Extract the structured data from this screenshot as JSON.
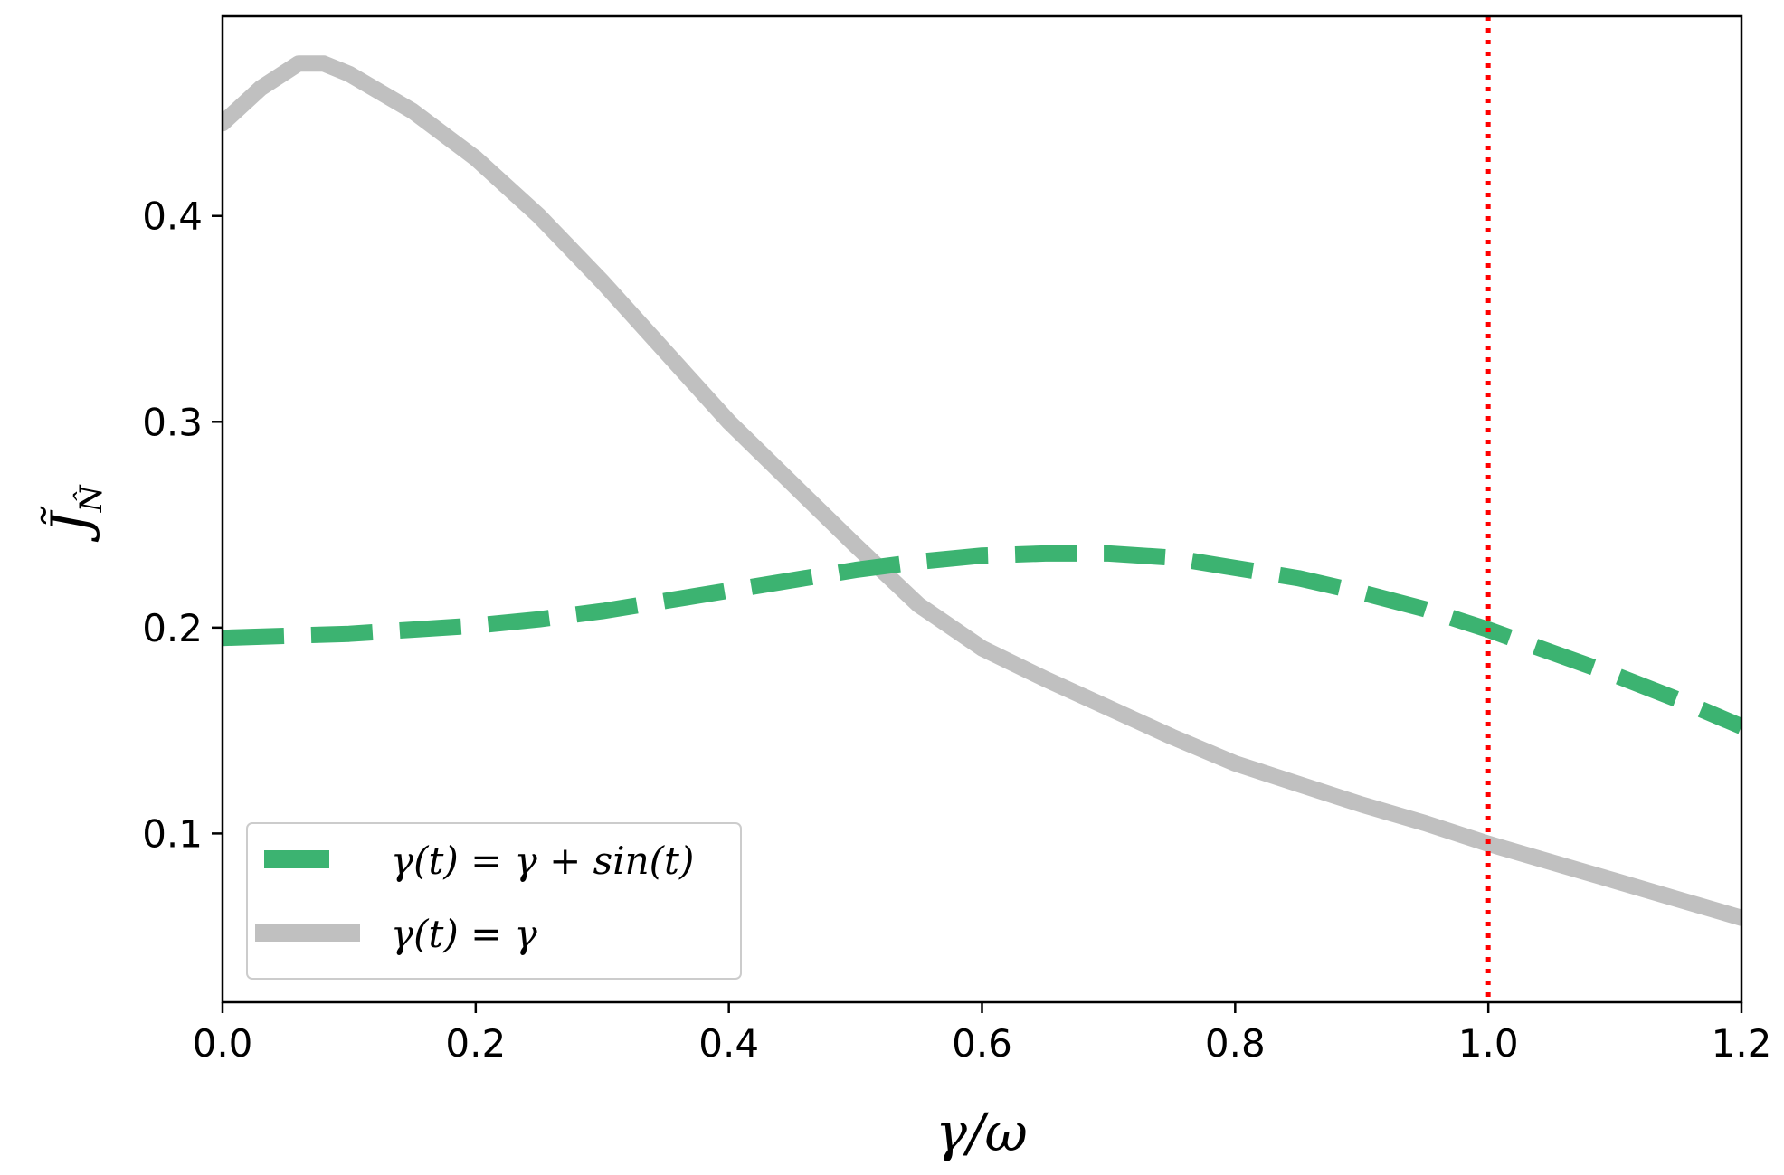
{
  "chart_data": {
    "type": "line",
    "title": "",
    "xlabel": "γ/ω",
    "ylabel": "J̃",
    "ylabel_subscript": "N̂",
    "xlim": [
      0.0,
      1.2
    ],
    "ylim": [
      0.018,
      0.497
    ],
    "xticks": [
      0.0,
      0.2,
      0.4,
      0.6,
      0.8,
      1.0,
      1.2
    ],
    "xtick_labels": [
      "0.0",
      "0.2",
      "0.4",
      "0.6",
      "0.8",
      "1.0",
      "1.2"
    ],
    "yticks": [
      0.1,
      0.2,
      0.3,
      0.4
    ],
    "ytick_labels": [
      "0.1",
      "0.2",
      "0.3",
      "0.4"
    ],
    "grid": false,
    "legend_position": "lower-left",
    "reference_line": {
      "axis": "x",
      "value": 1.0,
      "color": "#ff0000",
      "style": "dotted"
    },
    "series": [
      {
        "name": "γ(t) = γ + sin(t)",
        "color": "#3cb371",
        "style": "dashed",
        "x": [
          0.0,
          0.05,
          0.1,
          0.15,
          0.2,
          0.25,
          0.3,
          0.35,
          0.4,
          0.45,
          0.5,
          0.55,
          0.6,
          0.65,
          0.7,
          0.75,
          0.8,
          0.85,
          0.9,
          0.95,
          1.0,
          1.05,
          1.1,
          1.15,
          1.2
        ],
        "values": [
          0.195,
          0.196,
          0.197,
          0.199,
          0.201,
          0.204,
          0.208,
          0.213,
          0.218,
          0.223,
          0.228,
          0.232,
          0.235,
          0.236,
          0.236,
          0.234,
          0.229,
          0.224,
          0.217,
          0.209,
          0.199,
          0.188,
          0.177,
          0.165,
          0.152
        ]
      },
      {
        "name": "γ(t) = γ",
        "color": "#c0c0c0",
        "style": "solid",
        "x": [
          0.0,
          0.03,
          0.06,
          0.08,
          0.1,
          0.15,
          0.2,
          0.25,
          0.3,
          0.35,
          0.4,
          0.45,
          0.5,
          0.55,
          0.6,
          0.65,
          0.7,
          0.75,
          0.8,
          0.85,
          0.9,
          0.95,
          1.0,
          1.05,
          1.1,
          1.15,
          1.2
        ],
        "values": [
          0.445,
          0.462,
          0.474,
          0.474,
          0.469,
          0.451,
          0.428,
          0.4,
          0.368,
          0.334,
          0.3,
          0.27,
          0.24,
          0.211,
          0.19,
          0.175,
          0.161,
          0.147,
          0.134,
          0.124,
          0.114,
          0.105,
          0.095,
          0.086,
          0.077,
          0.068,
          0.059
        ]
      }
    ]
  },
  "colors": {
    "dashed_series": "#3cb371",
    "solid_series": "#c0c0c0",
    "reference_line": "#ff0000",
    "axes": "#000000",
    "legend_border": "#cccccc"
  }
}
